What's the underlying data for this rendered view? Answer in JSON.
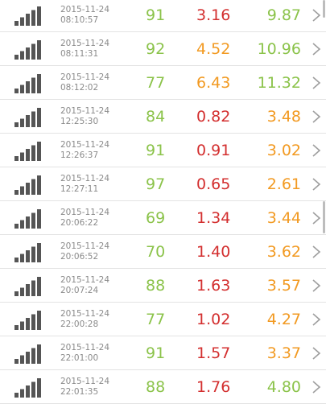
{
  "colors": {
    "green": "#8bc34a",
    "red": "#d32f2f",
    "orange": "#f29a22",
    "gray_text": "#8a8a8a",
    "icon": "#555555"
  },
  "icons": {
    "signal": "signal-strength-icon",
    "chevron": "chevron-right-icon"
  },
  "rows": [
    {
      "date": "2015-11-24",
      "time": "08:10:57",
      "score": "91",
      "score_color": "green",
      "value1": "3.16",
      "value1_color": "red",
      "value2": "9.87",
      "value2_color": "green"
    },
    {
      "date": "2015-11-24",
      "time": "08:11:31",
      "score": "92",
      "score_color": "green",
      "value1": "4.52",
      "value1_color": "orange",
      "value2": "10.96",
      "value2_color": "green"
    },
    {
      "date": "2015-11-24",
      "time": "08:12:02",
      "score": "77",
      "score_color": "green",
      "value1": "6.43",
      "value1_color": "orange",
      "value2": "11.32",
      "value2_color": "green"
    },
    {
      "date": "2015-11-24",
      "time": "12:25:30",
      "score": "84",
      "score_color": "green",
      "value1": "0.82",
      "value1_color": "red",
      "value2": "3.48",
      "value2_color": "orange"
    },
    {
      "date": "2015-11-24",
      "time": "12:26:37",
      "score": "91",
      "score_color": "green",
      "value1": "0.91",
      "value1_color": "red",
      "value2": "3.02",
      "value2_color": "orange"
    },
    {
      "date": "2015-11-24",
      "time": "12:27:11",
      "score": "97",
      "score_color": "green",
      "value1": "0.65",
      "value1_color": "red",
      "value2": "2.61",
      "value2_color": "orange"
    },
    {
      "date": "2015-11-24",
      "time": "20:06:22",
      "score": "69",
      "score_color": "green",
      "value1": "1.34",
      "value1_color": "red",
      "value2": "3.44",
      "value2_color": "orange"
    },
    {
      "date": "2015-11-24",
      "time": "20:06:52",
      "score": "70",
      "score_color": "green",
      "value1": "1.40",
      "value1_color": "red",
      "value2": "3.62",
      "value2_color": "orange"
    },
    {
      "date": "2015-11-24",
      "time": "20:07:24",
      "score": "88",
      "score_color": "green",
      "value1": "1.63",
      "value1_color": "red",
      "value2": "3.57",
      "value2_color": "orange"
    },
    {
      "date": "2015-11-24",
      "time": "22:00:28",
      "score": "77",
      "score_color": "green",
      "value1": "1.02",
      "value1_color": "red",
      "value2": "4.27",
      "value2_color": "orange"
    },
    {
      "date": "2015-11-24",
      "time": "22:01:00",
      "score": "91",
      "score_color": "green",
      "value1": "1.57",
      "value1_color": "red",
      "value2": "3.37",
      "value2_color": "orange"
    },
    {
      "date": "2015-11-24",
      "time": "22:01:35",
      "score": "88",
      "score_color": "green",
      "value1": "1.76",
      "value1_color": "red",
      "value2": "4.80",
      "value2_color": "green"
    }
  ]
}
